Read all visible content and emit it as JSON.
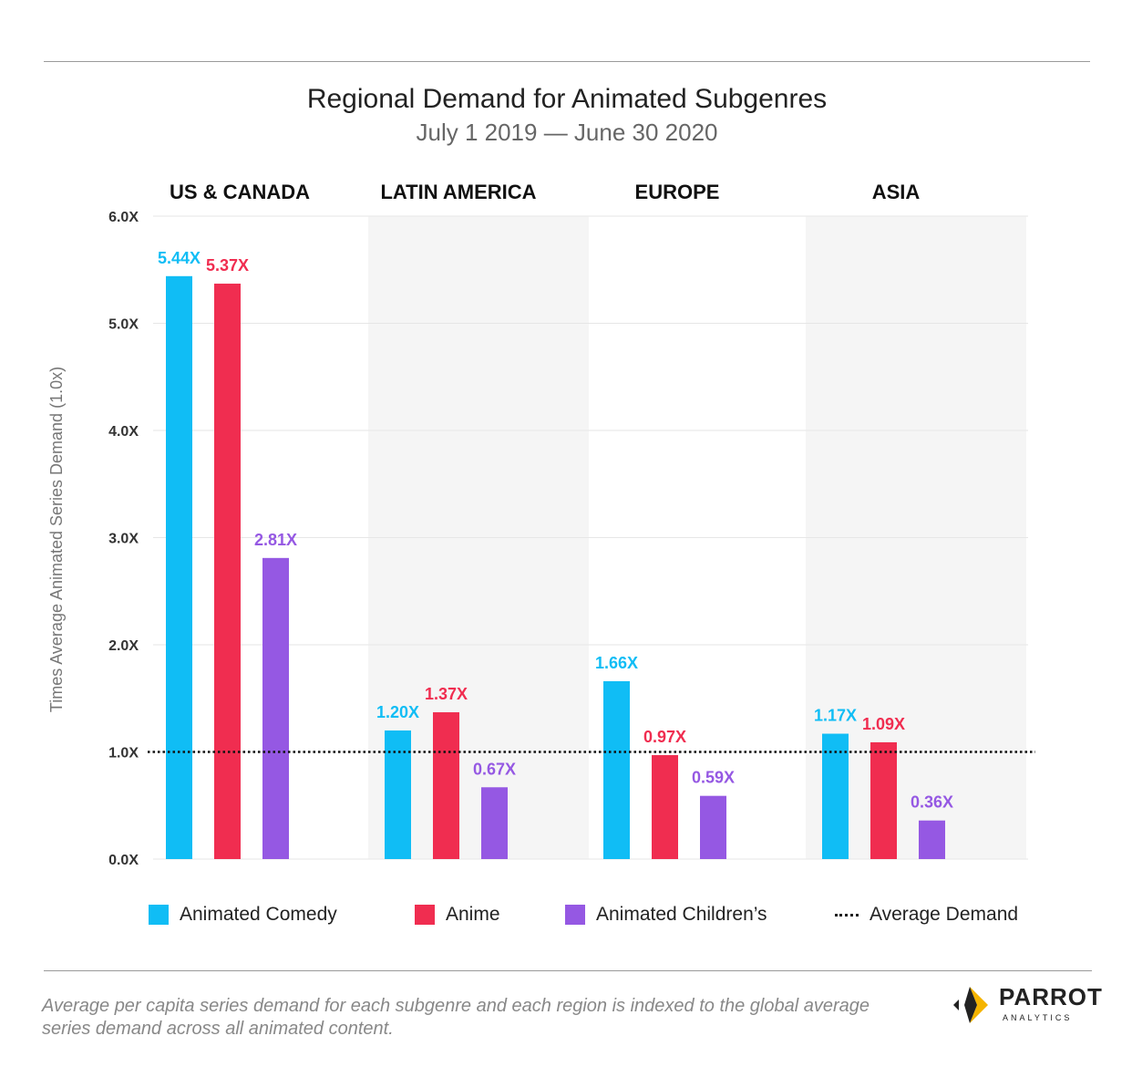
{
  "chart_data": {
    "type": "bar",
    "title": "Regional Demand for Animated Subgenres",
    "subtitle": "July 1 2019 — June 30 2020",
    "ylabel": "Times Average Animated Series Demand (1.0x)",
    "ylim": [
      0,
      6
    ],
    "yticks": [
      "0.0X",
      "1.0X",
      "2.0X",
      "3.0X",
      "4.0X",
      "5.0X",
      "6.0X"
    ],
    "ytick_values": [
      0,
      1,
      2,
      3,
      4,
      5,
      6
    ],
    "categories": [
      "US & CANADA",
      "LATIN AMERICA",
      "EUROPE",
      "ASIA"
    ],
    "series": [
      {
        "name": "Animated Comedy",
        "color": "#10BDF5",
        "values": [
          5.44,
          1.2,
          1.66,
          1.17
        ],
        "labels": [
          "5.44X",
          "1.20X",
          "1.66X",
          "1.17X"
        ]
      },
      {
        "name": "Anime",
        "color": "#F02D50",
        "values": [
          5.37,
          1.37,
          0.97,
          1.09
        ],
        "labels": [
          "5.37X",
          "1.37X",
          "0.97X",
          "1.09X"
        ]
      },
      {
        "name": "Animated Children’s",
        "color": "#9558E3",
        "values": [
          2.81,
          0.67,
          0.59,
          0.36
        ],
        "labels": [
          "2.81X",
          "0.67X",
          "0.59X",
          "0.36X"
        ]
      }
    ],
    "reference_line": {
      "name": "Average Demand",
      "value": 1.0,
      "style": "dotted"
    },
    "legend_position": "bottom"
  },
  "footnote": "Average per capita series demand for each subgenre and each region is indexed to the global average series demand across all animated content.",
  "logo": {
    "name": "PARROT",
    "tagline": "ANALYTICS"
  }
}
